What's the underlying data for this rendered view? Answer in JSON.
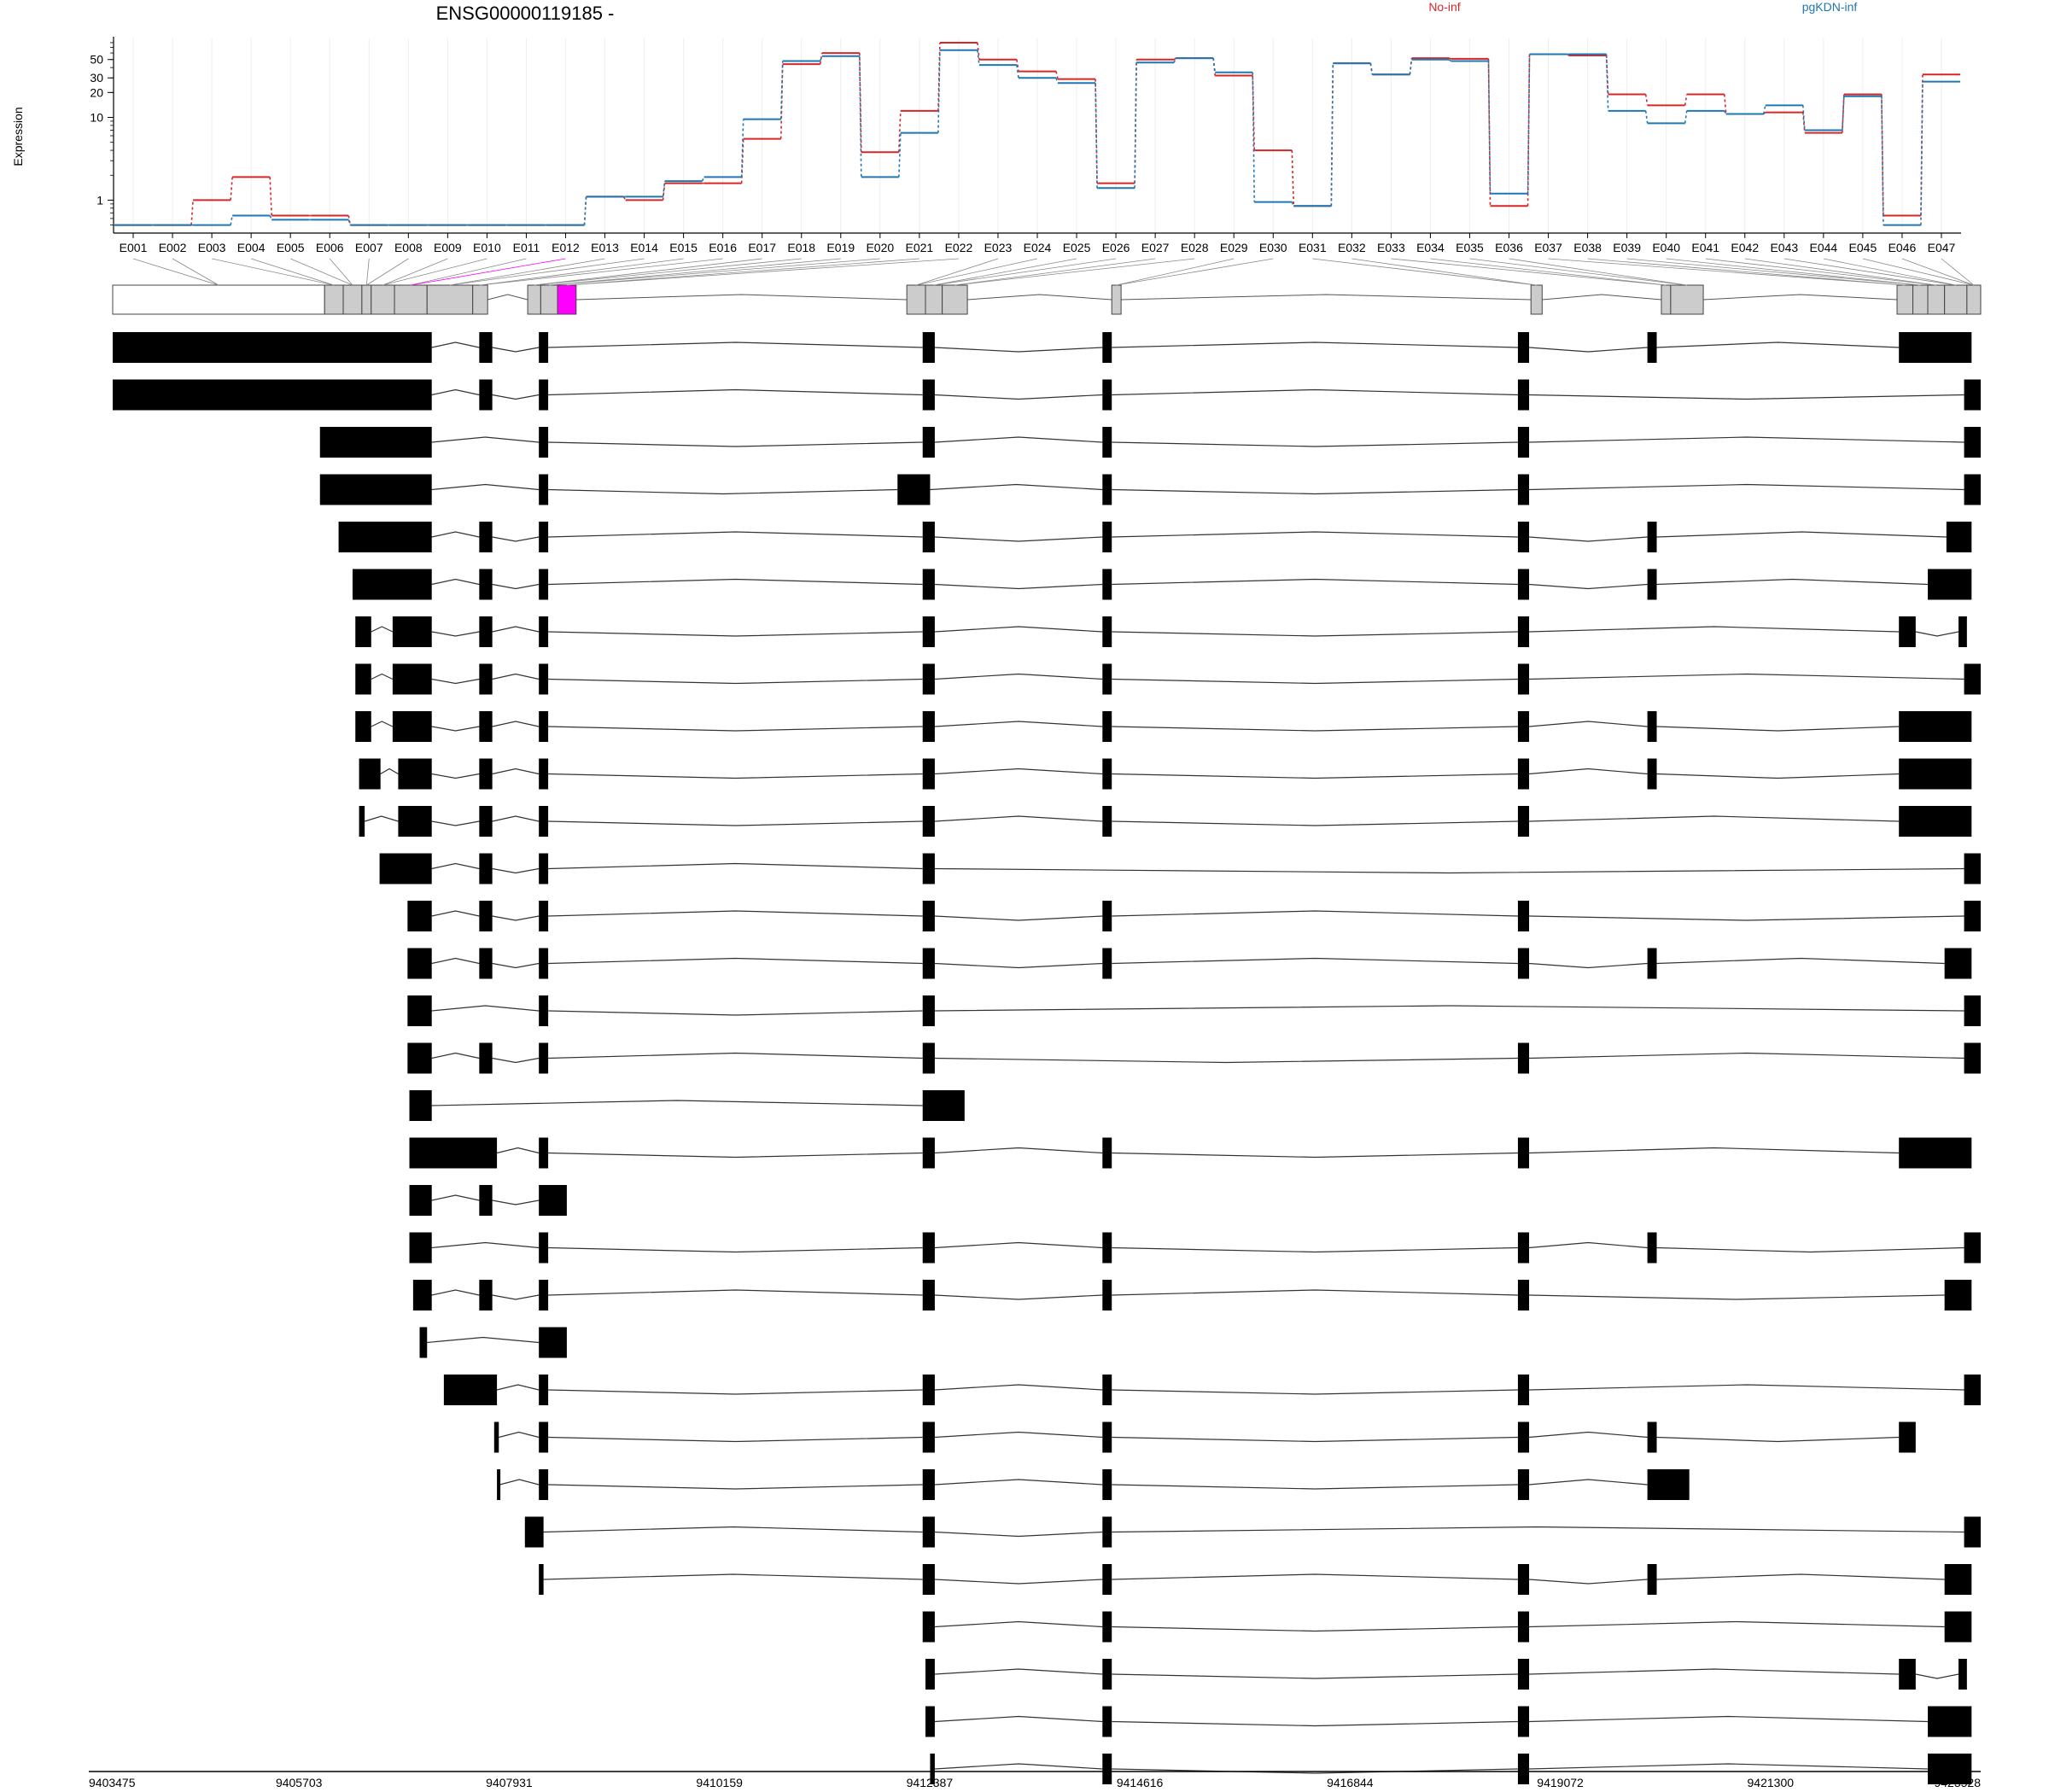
{
  "chart_data": {
    "type": "line",
    "title": "ENSG00000119185 -",
    "ylabel": "Expression",
    "yscale": "log",
    "ylim": [
      0.4,
      90
    ],
    "yticks": [
      1,
      10,
      20,
      30,
      50
    ],
    "grid": true,
    "legend_position": "top",
    "colors": {
      "No-inf": "#d62728",
      "pgKDN-inf": "#1f77b4",
      "highlight_exon": "#ff00ff"
    },
    "categories": [
      "E001",
      "E002",
      "E003",
      "E004",
      "E005",
      "E006",
      "E007",
      "E008",
      "E009",
      "E010",
      "E011",
      "E012",
      "E013",
      "E014",
      "E015",
      "E016",
      "E017",
      "E018",
      "E019",
      "E020",
      "E021",
      "E022",
      "E023",
      "E024",
      "E025",
      "E026",
      "E027",
      "E028",
      "E029",
      "E030",
      "E031",
      "E032",
      "E033",
      "E034",
      "E035",
      "E036",
      "E037",
      "E038",
      "E039",
      "E040",
      "E041",
      "E042",
      "E043",
      "E044",
      "E045",
      "E046",
      "E047"
    ],
    "series": [
      {
        "name": "No-inf",
        "values": [
          0.5,
          0.5,
          1.0,
          1.9,
          0.65,
          0.65,
          0.5,
          0.5,
          0.5,
          0.5,
          0.5,
          0.5,
          1.1,
          1.0,
          1.6,
          1.6,
          5.5,
          44,
          60,
          3.8,
          12,
          80,
          50,
          36,
          29,
          1.6,
          50,
          52,
          32,
          4.0,
          0.85,
          45,
          33,
          52,
          51,
          0.85,
          58,
          56,
          19,
          14,
          19,
          11,
          11.5,
          6.5,
          19,
          0.65,
          33
        ]
      },
      {
        "name": "pgKDN-inf",
        "values": [
          0.5,
          0.5,
          0.5,
          0.65,
          0.58,
          0.58,
          0.5,
          0.5,
          0.5,
          0.5,
          0.5,
          0.5,
          1.1,
          1.1,
          1.7,
          1.9,
          9.5,
          48,
          55,
          1.9,
          6.5,
          65,
          43,
          30,
          26,
          1.4,
          46,
          52,
          35,
          0.95,
          0.85,
          45,
          33,
          50,
          48,
          1.2,
          58,
          58,
          12,
          8.5,
          12,
          11,
          14,
          7.0,
          18,
          0.5,
          27
        ]
      }
    ],
    "genome": {
      "start": 9403475,
      "end": 9423528,
      "tick_labels": [
        "9403475",
        "9405703",
        "9407931",
        "9410159",
        "9412387",
        "9414616",
        "9416844",
        "9419072",
        "9421300",
        "9423528"
      ],
      "gene_model_exons": [
        [
          9403475,
          9405750,
          "white"
        ],
        [
          9405750,
          9405950,
          "grey"
        ],
        [
          9405950,
          9406150,
          "grey"
        ],
        [
          9406150,
          9406250,
          "grey"
        ],
        [
          9406250,
          9406500,
          "grey"
        ],
        [
          9406500,
          9406850,
          "grey"
        ],
        [
          9406850,
          9407340,
          "grey"
        ],
        [
          9407340,
          9407500,
          "grey"
        ],
        [
          9407930,
          9408070,
          "grey"
        ],
        [
          9408070,
          9408250,
          "grey"
        ],
        [
          9408250,
          9408450,
          "magenta"
        ],
        [
          9412000,
          9412200,
          "grey"
        ],
        [
          9412200,
          9412380,
          "grey"
        ],
        [
          9412380,
          9412650,
          "grey"
        ],
        [
          9414200,
          9414300,
          "grey"
        ],
        [
          9418700,
          9418820,
          "grey"
        ],
        [
          9420100,
          9420200,
          "grey"
        ],
        [
          9420200,
          9420550,
          "grey"
        ],
        [
          9422630,
          9422800,
          "grey"
        ],
        [
          9422800,
          9422960,
          "grey"
        ],
        [
          9422960,
          9423140,
          "grey"
        ],
        [
          9423140,
          9423380,
          "grey"
        ],
        [
          9423380,
          9423528,
          "grey"
        ]
      ],
      "transcripts": [
        [
          [
            9403475,
            9406900
          ],
          [
            9407410,
            9407550
          ],
          [
            9408050,
            9408150
          ],
          [
            9412170,
            9412300
          ],
          [
            9414100,
            9414200
          ],
          [
            9418560,
            9418680
          ],
          [
            9419950,
            9420050
          ],
          [
            9422650,
            9423430
          ]
        ],
        [
          [
            9403475,
            9406900
          ],
          [
            9407410,
            9407550
          ],
          [
            9408050,
            9408150
          ],
          [
            9412170,
            9412300
          ],
          [
            9414100,
            9414200
          ],
          [
            9418560,
            9418680
          ],
          [
            9423350,
            9423528
          ]
        ],
        [
          [
            9405700,
            9406900
          ],
          [
            9408050,
            9408150
          ],
          [
            9412170,
            9412300
          ],
          [
            9414100,
            9414200
          ],
          [
            9418560,
            9418680
          ],
          [
            9423350,
            9423528
          ]
        ],
        [
          [
            9405700,
            9406900
          ],
          [
            9408050,
            9408150
          ],
          [
            9411900,
            9412250
          ],
          [
            9414100,
            9414200
          ],
          [
            9418560,
            9418680
          ],
          [
            9423350,
            9423528
          ]
        ],
        [
          [
            9405900,
            9406900
          ],
          [
            9407410,
            9407550
          ],
          [
            9408050,
            9408150
          ],
          [
            9412170,
            9412300
          ],
          [
            9414100,
            9414200
          ],
          [
            9418560,
            9418680
          ],
          [
            9419950,
            9420050
          ],
          [
            9423160,
            9423430
          ]
        ],
        [
          [
            9406050,
            9406900
          ],
          [
            9407410,
            9407550
          ],
          [
            9408050,
            9408150
          ],
          [
            9412170,
            9412300
          ],
          [
            9414100,
            9414200
          ],
          [
            9418560,
            9418680
          ],
          [
            9419950,
            9420050
          ],
          [
            9422960,
            9423430
          ]
        ],
        [
          [
            9406080,
            9406250
          ],
          [
            9406480,
            9406900
          ],
          [
            9407410,
            9407550
          ],
          [
            9408050,
            9408150
          ],
          [
            9412170,
            9412300
          ],
          [
            9414100,
            9414200
          ],
          [
            9418560,
            9418680
          ],
          [
            9422650,
            9422830
          ],
          [
            9423290,
            9423380
          ]
        ],
        [
          [
            9406080,
            9406250
          ],
          [
            9406480,
            9406900
          ],
          [
            9407410,
            9407550
          ],
          [
            9408050,
            9408150
          ],
          [
            9412170,
            9412300
          ],
          [
            9414100,
            9414200
          ],
          [
            9418560,
            9418680
          ],
          [
            9423350,
            9423528
          ]
        ],
        [
          [
            9406080,
            9406250
          ],
          [
            9406480,
            9406900
          ],
          [
            9407410,
            9407550
          ],
          [
            9408050,
            9408150
          ],
          [
            9412170,
            9412300
          ],
          [
            9414100,
            9414200
          ],
          [
            9418560,
            9418680
          ],
          [
            9419950,
            9420050
          ],
          [
            9422650,
            9423430
          ]
        ],
        [
          [
            9406120,
            9406350
          ],
          [
            9406540,
            9406900
          ],
          [
            9407410,
            9407550
          ],
          [
            9408050,
            9408150
          ],
          [
            9412170,
            9412300
          ],
          [
            9414100,
            9414200
          ],
          [
            9418560,
            9418680
          ],
          [
            9419950,
            9420050
          ],
          [
            9422650,
            9423430
          ]
        ],
        [
          [
            9406120,
            9406180
          ],
          [
            9406540,
            9406900
          ],
          [
            9407410,
            9407550
          ],
          [
            9408050,
            9408150
          ],
          [
            9412170,
            9412300
          ],
          [
            9414100,
            9414200
          ],
          [
            9418560,
            9418680
          ],
          [
            9422650,
            9423430
          ]
        ],
        [
          [
            9406340,
            9406900
          ],
          [
            9407410,
            9407550
          ],
          [
            9408050,
            9408150
          ],
          [
            9412170,
            9412300
          ],
          [
            9423350,
            9423528
          ]
        ],
        [
          [
            9406640,
            9406900
          ],
          [
            9407410,
            9407550
          ],
          [
            9408050,
            9408150
          ],
          [
            9412170,
            9412300
          ],
          [
            9414100,
            9414200
          ],
          [
            9418560,
            9418680
          ],
          [
            9423350,
            9423528
          ]
        ],
        [
          [
            9406640,
            9406900
          ],
          [
            9407410,
            9407550
          ],
          [
            9408050,
            9408150
          ],
          [
            9412170,
            9412300
          ],
          [
            9414100,
            9414200
          ],
          [
            9418560,
            9418680
          ],
          [
            9419950,
            9420050
          ],
          [
            9423140,
            9423430
          ]
        ],
        [
          [
            9406640,
            9406900
          ],
          [
            9408050,
            9408150
          ],
          [
            9412170,
            9412300
          ],
          [
            9423350,
            9423528
          ]
        ],
        [
          [
            9406640,
            9406900
          ],
          [
            9407410,
            9407550
          ],
          [
            9408050,
            9408150
          ],
          [
            9412170,
            9412300
          ],
          [
            9418560,
            9418680
          ],
          [
            9423350,
            9423528
          ]
        ],
        [
          [
            9406660,
            9406900
          ],
          [
            9412170,
            9412620
          ]
        ],
        [
          [
            9406660,
            9407600
          ],
          [
            9408050,
            9408150
          ],
          [
            9412170,
            9412300
          ],
          [
            9414100,
            9414200
          ],
          [
            9418560,
            9418680
          ],
          [
            9422650,
            9423430
          ]
        ],
        [
          [
            9406660,
            9406900
          ],
          [
            9407410,
            9407550
          ],
          [
            9408050,
            9408350
          ]
        ],
        [
          [
            9406660,
            9406900
          ],
          [
            9408050,
            9408150
          ],
          [
            9412170,
            9412300
          ],
          [
            9414100,
            9414200
          ],
          [
            9418560,
            9418680
          ],
          [
            9419950,
            9420050
          ],
          [
            9423350,
            9423528
          ]
        ],
        [
          [
            9406700,
            9406900
          ],
          [
            9407410,
            9407550
          ],
          [
            9408050,
            9408150
          ],
          [
            9412170,
            9412300
          ],
          [
            9414100,
            9414200
          ],
          [
            9418560,
            9418680
          ],
          [
            9423140,
            9423430
          ]
        ],
        [
          [
            9406770,
            9406850
          ],
          [
            9408050,
            9408350
          ]
        ],
        [
          [
            9407030,
            9407600
          ],
          [
            9408050,
            9408150
          ],
          [
            9412170,
            9412300
          ],
          [
            9414100,
            9414200
          ],
          [
            9418560,
            9418680
          ],
          [
            9423350,
            9423528
          ]
        ],
        [
          [
            9407570,
            9407620
          ],
          [
            9408050,
            9408150
          ],
          [
            9412170,
            9412300
          ],
          [
            9414100,
            9414200
          ],
          [
            9418560,
            9418680
          ],
          [
            9419950,
            9420050
          ],
          [
            9422650,
            9422830
          ]
        ],
        [
          [
            9407600,
            9407630
          ],
          [
            9408050,
            9408150
          ],
          [
            9412170,
            9412300
          ],
          [
            9414100,
            9414200
          ],
          [
            9418560,
            9418680
          ],
          [
            9419950,
            9420400
          ]
        ],
        [
          [
            9407900,
            9408100
          ],
          [
            9412170,
            9412300
          ],
          [
            9414100,
            9414200
          ],
          [
            9423350,
            9423528
          ]
        ],
        [
          [
            9408050,
            9408100
          ],
          [
            9412170,
            9412300
          ],
          [
            9414100,
            9414200
          ],
          [
            9418560,
            9418680
          ],
          [
            9419950,
            9420050
          ],
          [
            9423140,
            9423430
          ]
        ],
        [
          [
            9412170,
            9412300
          ],
          [
            9414100,
            9414200
          ],
          [
            9418560,
            9418680
          ],
          [
            9423140,
            9423430
          ]
        ],
        [
          [
            9412200,
            9412300
          ],
          [
            9414100,
            9414200
          ],
          [
            9418560,
            9418680
          ],
          [
            9422650,
            9422830
          ],
          [
            9423290,
            9423380
          ]
        ],
        [
          [
            9412200,
            9412300
          ],
          [
            9414100,
            9414200
          ],
          [
            9418560,
            9418680
          ],
          [
            9422960,
            9423430
          ]
        ],
        [
          [
            9412250,
            9412300
          ],
          [
            9414100,
            9414200
          ],
          [
            9418560,
            9418680
          ],
          [
            9422960,
            9423430
          ]
        ]
      ]
    }
  }
}
